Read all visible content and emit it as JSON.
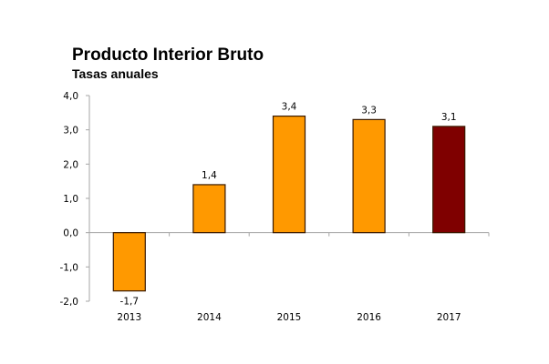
{
  "chart_data": {
    "type": "bar",
    "title": "Producto Interior Bruto",
    "subtitle": "Tasas anuales",
    "xlabel": "",
    "ylabel": "",
    "categories": [
      "2013",
      "2014",
      "2015",
      "2016",
      "2017"
    ],
    "values": [
      -1.7,
      1.4,
      3.4,
      3.3,
      3.1
    ],
    "data_labels": [
      "-1,7",
      "1,4",
      "3,4",
      "3,3",
      "3,1"
    ],
    "ylim": [
      -2.0,
      4.0
    ],
    "yticks": [
      4.0,
      3.0,
      2.0,
      1.0,
      0.0,
      -1.0,
      -2.0
    ],
    "ytick_labels": [
      "4,0",
      "3,0",
      "2,0",
      "1,0",
      "0,0",
      "-1,0",
      "-2,0"
    ],
    "grid": false,
    "legend": "none",
    "colors": [
      "#FF9900",
      "#FF9900",
      "#FF9900",
      "#FF9900",
      "#7F0000"
    ],
    "border_color": "#3A1A00",
    "axis_color": "#A6A6A6"
  }
}
